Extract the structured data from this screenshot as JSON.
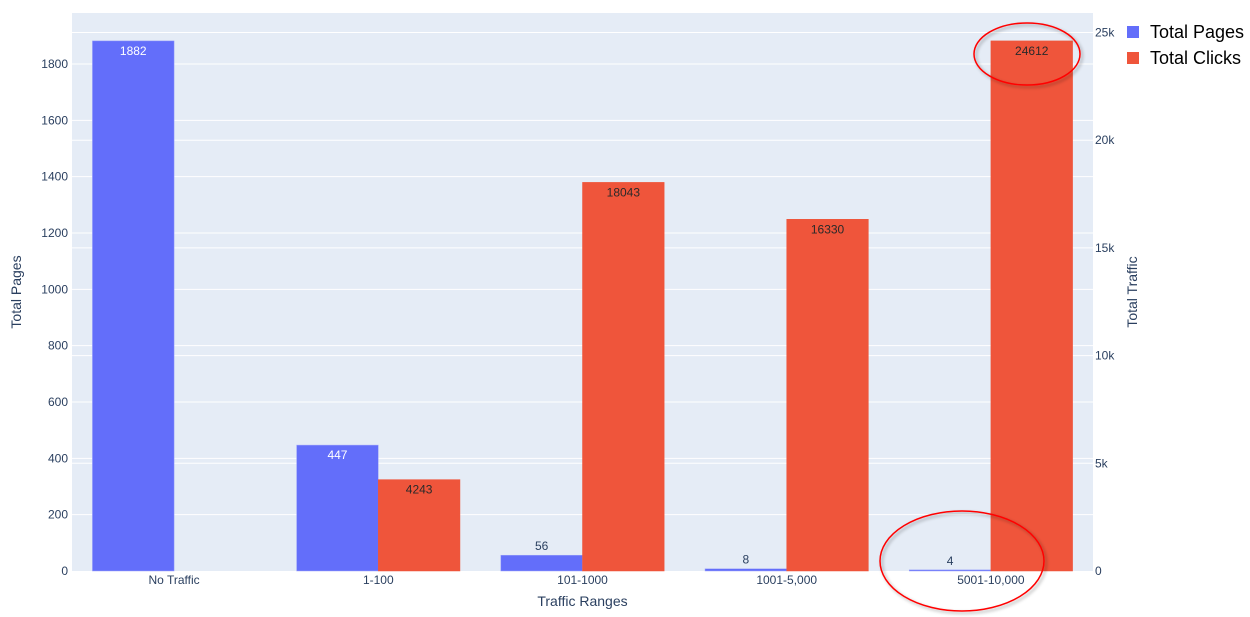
{
  "chart_data": {
    "type": "bar",
    "categories": [
      "No Traffic",
      "1-100",
      "101-1000",
      "1001-5,000",
      "5001-10,000"
    ],
    "series": [
      {
        "name": "Total Pages",
        "axis": "left",
        "color": "#636EFA",
        "values": [
          1882,
          447,
          56,
          8,
          4
        ]
      },
      {
        "name": "Total Clicks",
        "axis": "right",
        "color": "#EF553B",
        "values": [
          null,
          4243,
          18043,
          16330,
          24612
        ]
      }
    ],
    "xlabel": "Traffic Ranges",
    "ylabel": "Total Pages",
    "y2label": "Total Traffic",
    "ylim": [
      0,
      1981
    ],
    "y2lim": [
      0,
      25907
    ],
    "yticks": [
      0,
      200,
      400,
      600,
      800,
      1000,
      1200,
      1400,
      1600,
      1800
    ],
    "y2ticks": [
      0,
      5000,
      10000,
      15000,
      20000,
      25000
    ],
    "y2ticklabels": [
      "0",
      "5k",
      "10k",
      "15k",
      "20k",
      "25k"
    ],
    "grid": true,
    "legend_position": "top-right",
    "plot_background": "#E5ECF6",
    "annotations": [
      {
        "shape": "ellipse",
        "color": "#FF0000",
        "highlights": "Total Clicks 5001-10,000 (24612)"
      },
      {
        "shape": "ellipse",
        "color": "#FF0000",
        "highlights": "Total Pages 5001-10,000 (4)"
      }
    ]
  }
}
